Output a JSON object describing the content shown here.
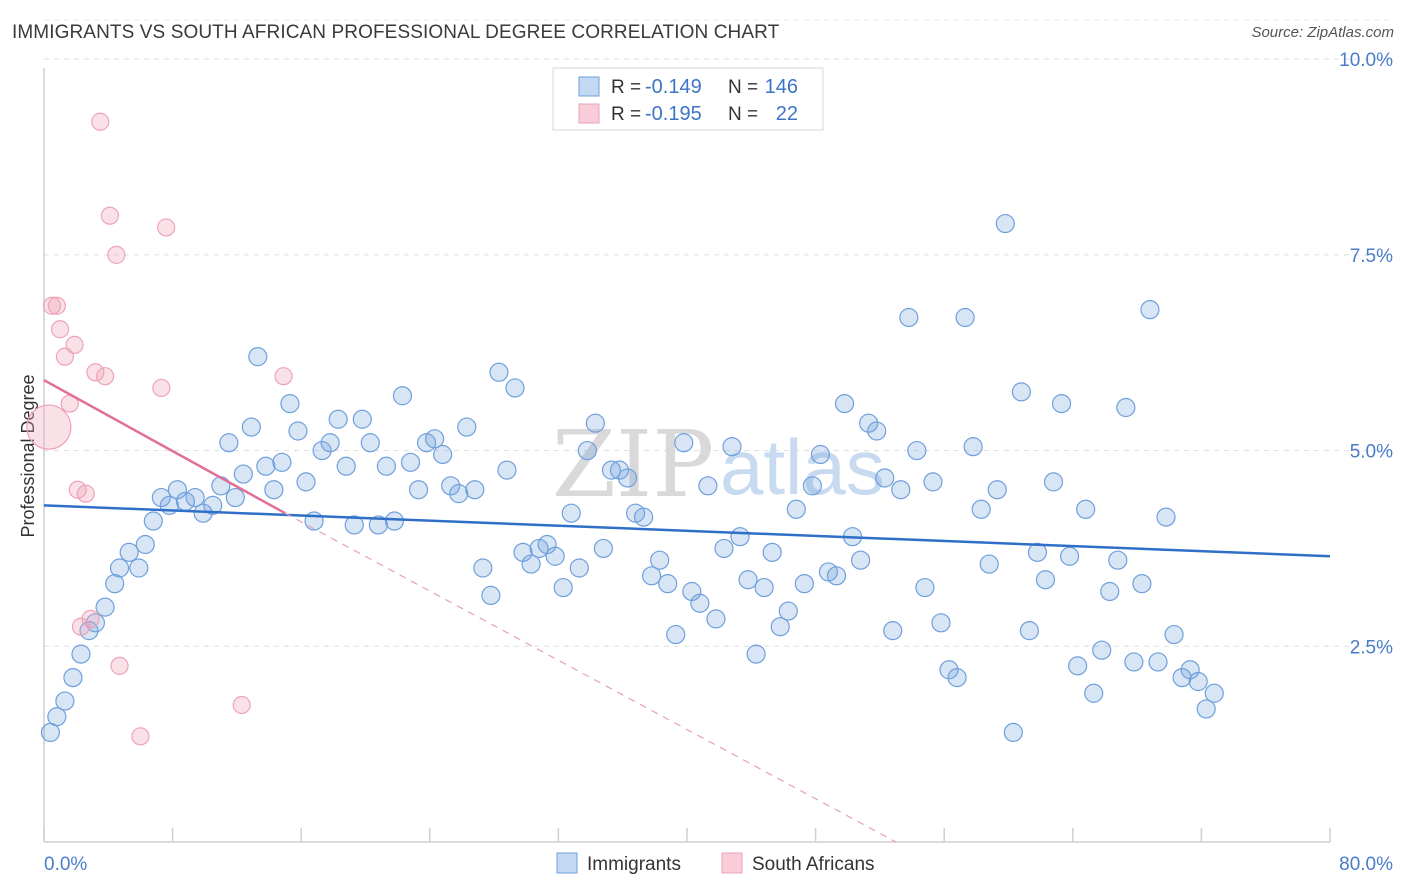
{
  "title": "IMMIGRANTS VS SOUTH AFRICAN PROFESSIONAL DEGREE CORRELATION CHART",
  "source": "Source: ZipAtlas.com",
  "watermark": {
    "zip": "ZIP",
    "atlas": "atlas"
  },
  "colors": {
    "immigrants": "#6fa0dc",
    "south_africans": "#eea3b8",
    "blue_line": "#2f6fc8",
    "pink_line": "#e07098"
  },
  "legend_box": {
    "rows": [
      {
        "r_label": "R =",
        "r_value": "-0.149",
        "n_label": "N =",
        "n_value": "146"
      },
      {
        "r_label": "R =",
        "r_value": "-0.195",
        "n_label": "N =",
        "n_value": "22"
      }
    ]
  },
  "chart_data": {
    "type": "scatter",
    "title": "IMMIGRANTS VS SOUTH AFRICAN PROFESSIONAL DEGREE CORRELATION CHART",
    "xlabel": "",
    "ylabel": "Professional Degree",
    "xlim": [
      0,
      80
    ],
    "ylim": [
      0,
      10.5
    ],
    "x_tick_labels": [
      "0.0%",
      "80.0%"
    ],
    "y_ticks": [
      2.5,
      5.0,
      7.5,
      10.0
    ],
    "y_tick_labels": [
      "2.5%",
      "5.0%",
      "7.5%",
      "10.0%"
    ],
    "legend": [
      "Immigrants",
      "South Africans"
    ],
    "series": [
      {
        "name": "Immigrants",
        "r": -0.149,
        "n": 146,
        "trend": {
          "x0": 0,
          "y0": 4.3,
          "x1": 80,
          "y1": 3.65
        },
        "points": [
          [
            0.4,
            1.4
          ],
          [
            0.8,
            1.6
          ],
          [
            1.3,
            1.8
          ],
          [
            1.8,
            2.1
          ],
          [
            2.3,
            2.4
          ],
          [
            2.8,
            2.7
          ],
          [
            3.2,
            2.8
          ],
          [
            3.8,
            3.0
          ],
          [
            4.4,
            3.3
          ],
          [
            4.7,
            3.5
          ],
          [
            5.3,
            3.7
          ],
          [
            5.9,
            3.5
          ],
          [
            6.3,
            3.8
          ],
          [
            6.8,
            4.1
          ],
          [
            7.3,
            4.4
          ],
          [
            7.8,
            4.3
          ],
          [
            8.3,
            4.5
          ],
          [
            8.8,
            4.35
          ],
          [
            9.4,
            4.4
          ],
          [
            9.9,
            4.2
          ],
          [
            10.5,
            4.3
          ],
          [
            11.0,
            4.55
          ],
          [
            11.5,
            5.1
          ],
          [
            11.9,
            4.4
          ],
          [
            12.4,
            4.7
          ],
          [
            12.9,
            5.3
          ],
          [
            13.3,
            6.2
          ],
          [
            13.8,
            4.8
          ],
          [
            14.3,
            4.5
          ],
          [
            14.8,
            4.85
          ],
          [
            15.3,
            5.6
          ],
          [
            15.8,
            5.25
          ],
          [
            16.3,
            4.6
          ],
          [
            16.8,
            4.1
          ],
          [
            17.3,
            5.0
          ],
          [
            17.8,
            5.1
          ],
          [
            18.3,
            5.4
          ],
          [
            18.8,
            4.8
          ],
          [
            19.3,
            4.05
          ],
          [
            19.8,
            5.4
          ],
          [
            20.3,
            5.1
          ],
          [
            20.8,
            4.05
          ],
          [
            21.3,
            4.8
          ],
          [
            21.8,
            4.1
          ],
          [
            22.3,
            5.7
          ],
          [
            22.8,
            4.85
          ],
          [
            23.3,
            4.5
          ],
          [
            23.8,
            5.1
          ],
          [
            24.3,
            5.15
          ],
          [
            24.8,
            4.95
          ],
          [
            25.3,
            4.55
          ],
          [
            25.8,
            4.45
          ],
          [
            26.3,
            5.3
          ],
          [
            26.8,
            4.5
          ],
          [
            27.3,
            3.5
          ],
          [
            27.8,
            3.15
          ],
          [
            28.3,
            6.0
          ],
          [
            28.8,
            4.75
          ],
          [
            29.3,
            5.8
          ],
          [
            29.8,
            3.7
          ],
          [
            30.3,
            3.55
          ],
          [
            30.8,
            3.75
          ],
          [
            31.3,
            3.8
          ],
          [
            31.8,
            3.65
          ],
          [
            32.3,
            3.25
          ],
          [
            32.8,
            4.2
          ],
          [
            33.3,
            3.5
          ],
          [
            33.8,
            5.0
          ],
          [
            34.3,
            5.35
          ],
          [
            34.8,
            3.75
          ],
          [
            35.3,
            4.75
          ],
          [
            35.8,
            4.75
          ],
          [
            36.3,
            4.65
          ],
          [
            36.8,
            4.2
          ],
          [
            37.3,
            4.15
          ],
          [
            37.8,
            3.4
          ],
          [
            38.3,
            3.6
          ],
          [
            38.8,
            3.3
          ],
          [
            39.3,
            2.65
          ],
          [
            39.8,
            5.1
          ],
          [
            40.3,
            3.2
          ],
          [
            40.8,
            3.05
          ],
          [
            41.3,
            4.55
          ],
          [
            41.8,
            2.85
          ],
          [
            42.3,
            3.75
          ],
          [
            42.8,
            5.05
          ],
          [
            43.3,
            3.9
          ],
          [
            43.8,
            3.35
          ],
          [
            44.3,
            2.4
          ],
          [
            44.8,
            3.25
          ],
          [
            45.3,
            3.7
          ],
          [
            45.8,
            2.75
          ],
          [
            46.3,
            2.95
          ],
          [
            46.8,
            4.25
          ],
          [
            47.3,
            3.3
          ],
          [
            47.8,
            4.55
          ],
          [
            48.3,
            4.95
          ],
          [
            48.8,
            3.45
          ],
          [
            49.3,
            3.4
          ],
          [
            49.8,
            5.6
          ],
          [
            50.3,
            3.9
          ],
          [
            50.8,
            3.6
          ],
          [
            51.3,
            5.35
          ],
          [
            51.8,
            5.25
          ],
          [
            52.3,
            4.65
          ],
          [
            52.8,
            2.7
          ],
          [
            53.3,
            4.5
          ],
          [
            53.8,
            6.7
          ],
          [
            54.3,
            5.0
          ],
          [
            54.8,
            3.25
          ],
          [
            55.3,
            4.6
          ],
          [
            55.8,
            2.8
          ],
          [
            56.3,
            2.2
          ],
          [
            56.8,
            2.1
          ],
          [
            57.3,
            6.7
          ],
          [
            57.8,
            5.05
          ],
          [
            58.3,
            4.25
          ],
          [
            58.8,
            3.55
          ],
          [
            59.3,
            4.5
          ],
          [
            59.8,
            7.9
          ],
          [
            60.3,
            1.4
          ],
          [
            60.8,
            5.75
          ],
          [
            61.3,
            2.7
          ],
          [
            61.8,
            3.7
          ],
          [
            62.3,
            3.35
          ],
          [
            62.8,
            4.6
          ],
          [
            63.3,
            5.6
          ],
          [
            63.8,
            3.65
          ],
          [
            64.3,
            2.25
          ],
          [
            64.8,
            4.25
          ],
          [
            65.3,
            1.9
          ],
          [
            65.8,
            2.45
          ],
          [
            66.3,
            3.2
          ],
          [
            66.8,
            3.6
          ],
          [
            67.3,
            5.55
          ],
          [
            67.8,
            2.3
          ],
          [
            68.3,
            3.3
          ],
          [
            68.8,
            6.8
          ],
          [
            69.3,
            2.3
          ],
          [
            69.8,
            4.15
          ],
          [
            70.3,
            2.65
          ],
          [
            70.8,
            2.1
          ],
          [
            71.3,
            2.2
          ],
          [
            71.8,
            2.05
          ],
          [
            72.3,
            1.7
          ],
          [
            72.8,
            1.9
          ]
        ]
      },
      {
        "name": "South Africans",
        "r": -0.195,
        "n": 22,
        "trend": {
          "x0": 0,
          "y0": 5.9,
          "x1": 15,
          "y1": 4.2,
          "dash_to_x": 53,
          "dash_to_y": 0.0
        },
        "points": [
          [
            0.3,
            5.3
          ],
          [
            0.5,
            6.85
          ],
          [
            0.8,
            6.85
          ],
          [
            1.0,
            6.55
          ],
          [
            1.3,
            6.2
          ],
          [
            1.6,
            5.6
          ],
          [
            1.9,
            6.35
          ],
          [
            2.1,
            4.5
          ],
          [
            2.3,
            2.75
          ],
          [
            2.6,
            4.45
          ],
          [
            2.9,
            2.85
          ],
          [
            3.2,
            6.0
          ],
          [
            3.5,
            9.2
          ],
          [
            3.8,
            5.95
          ],
          [
            4.1,
            8.0
          ],
          [
            4.5,
            7.5
          ],
          [
            4.7,
            2.25
          ],
          [
            6.0,
            1.35
          ],
          [
            7.3,
            5.8
          ],
          [
            7.6,
            7.85
          ],
          [
            12.3,
            1.75
          ],
          [
            14.9,
            5.95
          ]
        ]
      }
    ]
  }
}
